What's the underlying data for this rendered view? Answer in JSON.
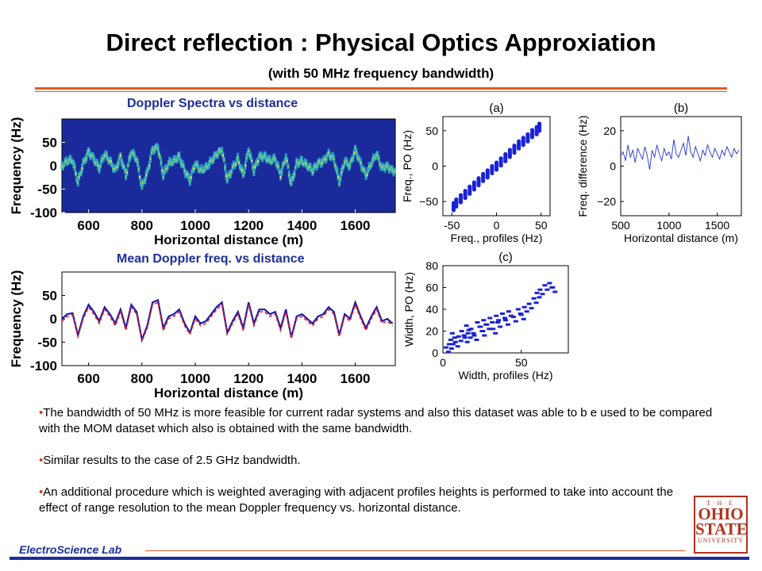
{
  "slide": {
    "title": "Direct reflection : Physical Optics Approxiation",
    "subtitle": "(with 50 MHz frequency bandwidth)",
    "footer": "ElectroScience Lab",
    "logo_lines": [
      "T·H·E",
      "OHIO",
      "STATE",
      "UNIVERSITY"
    ],
    "bullets": [
      "The bandwidth of 50 MHz is more feasible for current radar systems and also this dataset was able to b e used to be compared with the MOM dataset which also is obtained with the same bandwidth.",
      "Similar results to the case of 2.5 GHz bandwidth.",
      "An additional procedure which is weighted averaging with adjacent profiles heights is performed to take into account the effect of range resolution to the mean Doppler frequency vs. horizontal distance."
    ],
    "colors": {
      "title_blue": "#1c2f9a",
      "accent_orange": "#e85a1e",
      "logo_red": "#b3321d",
      "heatmap_bg": "#1a2a9a"
    }
  },
  "chart_data": [
    {
      "id": "doppler-spectra",
      "type": "heatmap",
      "title": "Doppler Spectra vs distance",
      "xlabel": "Horizontal distance (m)",
      "ylabel": "Frequency (Hz)",
      "xlim": [
        500,
        1750
      ],
      "ylim": [
        -100,
        100
      ],
      "xticks": [
        600,
        800,
        1000,
        1200,
        1400,
        1600
      ],
      "yticks": [
        50,
        0,
        -50,
        -100
      ],
      "x": [
        500,
        520,
        540,
        560,
        580,
        600,
        620,
        640,
        660,
        680,
        700,
        720,
        740,
        760,
        780,
        800,
        820,
        840,
        860,
        880,
        900,
        920,
        940,
        960,
        980,
        1000,
        1020,
        1040,
        1060,
        1080,
        1100,
        1120,
        1140,
        1160,
        1180,
        1200,
        1220,
        1240,
        1260,
        1280,
        1300,
        1320,
        1340,
        1360,
        1380,
        1400,
        1420,
        1440,
        1460,
        1480,
        1500,
        1520,
        1540,
        1560,
        1580,
        1600,
        1620,
        1640,
        1660,
        1680,
        1700,
        1720,
        1740
      ],
      "y": [
        0,
        10,
        12,
        -35,
        5,
        30,
        15,
        -5,
        25,
        10,
        -10,
        20,
        -20,
        30,
        15,
        -45,
        -15,
        35,
        40,
        -20,
        5,
        10,
        20,
        -10,
        -30,
        5,
        -10,
        -5,
        10,
        25,
        35,
        -30,
        -5,
        15,
        -20,
        35,
        -10,
        20,
        20,
        10,
        15,
        -20,
        20,
        -40,
        5,
        10,
        0,
        -10,
        5,
        10,
        25,
        15,
        -35,
        10,
        0,
        35,
        5,
        -20,
        5,
        25,
        -5,
        0,
        -10
      ]
    },
    {
      "id": "mean-doppler",
      "type": "line",
      "title": "Mean Doppler freq. vs distance",
      "xlabel": "Horizontal distance (m)",
      "ylabel": "Frequency (Hz)",
      "xlim": [
        500,
        1750
      ],
      "ylim": [
        -100,
        100
      ],
      "xticks": [
        600,
        800,
        1000,
        1200,
        1400,
        1600
      ],
      "yticks": [
        50,
        0,
        -50,
        -100
      ],
      "series": [
        {
          "color": "#1a1aa8",
          "x": [
            500,
            520,
            540,
            560,
            580,
            600,
            620,
            640,
            660,
            680,
            700,
            720,
            740,
            760,
            780,
            800,
            820,
            840,
            860,
            880,
            900,
            920,
            940,
            960,
            980,
            1000,
            1020,
            1040,
            1060,
            1080,
            1100,
            1120,
            1140,
            1160,
            1180,
            1200,
            1220,
            1240,
            1260,
            1280,
            1300,
            1320,
            1340,
            1360,
            1380,
            1400,
            1420,
            1440,
            1460,
            1480,
            1500,
            1520,
            1540,
            1560,
            1580,
            1600,
            1620,
            1640,
            1660,
            1680,
            1700,
            1720,
            1740
          ],
          "y": [
            0,
            10,
            12,
            -35,
            5,
            30,
            15,
            -5,
            25,
            10,
            -10,
            20,
            -20,
            30,
            15,
            -45,
            -15,
            35,
            40,
            -20,
            5,
            10,
            20,
            -10,
            -30,
            5,
            -10,
            -5,
            10,
            25,
            35,
            -30,
            -5,
            15,
            -20,
            35,
            -10,
            20,
            20,
            10,
            15,
            -20,
            20,
            -40,
            5,
            10,
            0,
            -10,
            5,
            10,
            25,
            15,
            -35,
            10,
            0,
            35,
            5,
            -20,
            5,
            25,
            -5,
            0,
            -10
          ]
        },
        {
          "color": "#e02020",
          "dashed": true,
          "x": [
            500,
            520,
            540,
            560,
            580,
            600,
            620,
            640,
            660,
            680,
            700,
            720,
            740,
            760,
            780,
            800,
            820,
            840,
            860,
            880,
            900,
            920,
            940,
            960,
            980,
            1000,
            1020,
            1040,
            1060,
            1080,
            1100,
            1120,
            1140,
            1160,
            1180,
            1200,
            1220,
            1240,
            1260,
            1280,
            1300,
            1320,
            1340,
            1360,
            1380,
            1400,
            1420,
            1440,
            1460,
            1480,
            1500,
            1520,
            1540,
            1560,
            1580,
            1600,
            1620,
            1640,
            1660,
            1680,
            1700,
            1720,
            1740
          ],
          "y": [
            -5,
            5,
            8,
            -38,
            0,
            25,
            10,
            -10,
            20,
            5,
            -15,
            15,
            -25,
            25,
            10,
            -48,
            -20,
            30,
            35,
            -25,
            0,
            5,
            15,
            -15,
            -33,
            0,
            -15,
            -10,
            5,
            20,
            30,
            -33,
            -10,
            10,
            -25,
            30,
            -15,
            15,
            15,
            5,
            10,
            -25,
            15,
            -42,
            0,
            5,
            -5,
            -15,
            0,
            5,
            20,
            10,
            -38,
            5,
            -5,
            30,
            0,
            -25,
            0,
            20,
            -10,
            -5,
            -15
          ]
        }
      ]
    },
    {
      "id": "panel-a",
      "type": "scatter",
      "panel_label": "(a)",
      "xlabel": "Freq., profiles (Hz)",
      "ylabel": "Freq., PO (Hz)",
      "xlim": [
        -60,
        60
      ],
      "ylim": [
        -70,
        70
      ],
      "xticks": [
        -50,
        0,
        50
      ],
      "yticks": [
        50,
        0,
        -50
      ],
      "x": [
        -48,
        -45,
        -40,
        -35,
        -30,
        -25,
        -20,
        -15,
        -10,
        -5,
        0,
        5,
        10,
        15,
        20,
        25,
        30,
        35,
        40,
        45,
        48
      ],
      "y": [
        -57,
        -52,
        -46,
        -40,
        -34,
        -28,
        -22,
        -16,
        -11,
        -5,
        0,
        6,
        12,
        18,
        24,
        30,
        35,
        40,
        46,
        50,
        55
      ]
    },
    {
      "id": "panel-b",
      "type": "line",
      "panel_label": "(b)",
      "xlabel": "Horizontal distance (m)",
      "ylabel": "Freq. difference (Hz)",
      "xlim": [
        500,
        1750
      ],
      "ylim": [
        -28,
        28
      ],
      "xticks": [
        500,
        1000,
        1500
      ],
      "yticks": [
        20,
        0,
        -20
      ],
      "series": [
        {
          "color": "#2233cc",
          "x": [
            500,
            525,
            550,
            575,
            600,
            625,
            650,
            675,
            700,
            725,
            750,
            775,
            800,
            825,
            850,
            875,
            900,
            925,
            950,
            975,
            1000,
            1025,
            1050,
            1075,
            1100,
            1125,
            1150,
            1175,
            1200,
            1225,
            1250,
            1275,
            1300,
            1325,
            1350,
            1375,
            1400,
            1425,
            1450,
            1475,
            1500,
            1525,
            1550,
            1575,
            1600,
            1625,
            1650,
            1675,
            1700,
            1725
          ],
          "y": [
            6,
            8,
            3,
            12,
            5,
            9,
            2,
            10,
            7,
            4,
            11,
            6,
            -2,
            9,
            5,
            12,
            7,
            3,
            10,
            6,
            8,
            4,
            15,
            7,
            5,
            9,
            13,
            6,
            17,
            8,
            5,
            11,
            7,
            3,
            9,
            6,
            12,
            8,
            5,
            10,
            7,
            4,
            9,
            6,
            11,
            8,
            5,
            10,
            7,
            9
          ]
        }
      ]
    },
    {
      "id": "panel-c",
      "type": "scatter",
      "panel_label": "(c)",
      "xlabel": "Width, profiles (Hz)",
      "ylabel": "Width, PO (Hz)",
      "xlim": [
        0,
        80
      ],
      "ylim": [
        0,
        80
      ],
      "xticks": [
        0,
        50
      ],
      "yticks": [
        80,
        60,
        40,
        20,
        0
      ],
      "x": [
        2,
        4,
        5,
        6,
        8,
        10,
        12,
        14,
        15,
        16,
        18,
        20,
        22,
        24,
        25,
        26,
        28,
        30,
        32,
        34,
        35,
        38,
        40,
        42,
        45,
        48,
        50,
        52,
        55,
        58,
        60,
        62,
        65,
        68,
        70
      ],
      "y": [
        5,
        8,
        12,
        18,
        10,
        15,
        20,
        14,
        25,
        18,
        22,
        16,
        28,
        24,
        20,
        30,
        26,
        32,
        22,
        34,
        28,
        36,
        30,
        38,
        33,
        40,
        35,
        42,
        45,
        50,
        55,
        58,
        62,
        64,
        60
      ]
    }
  ]
}
